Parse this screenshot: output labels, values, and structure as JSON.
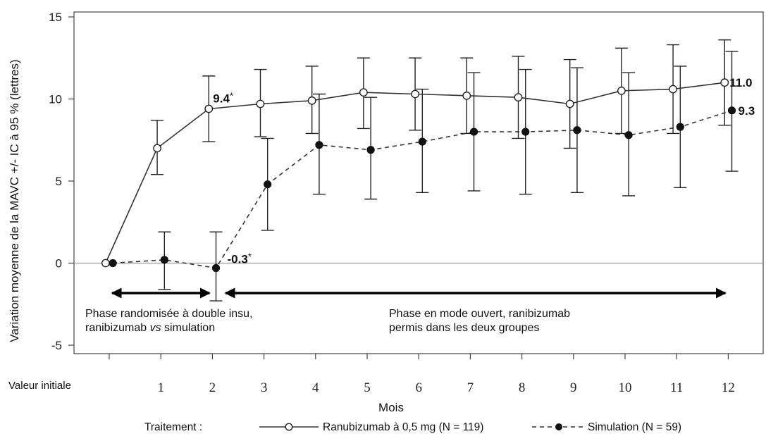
{
  "chart_data": {
    "type": "line",
    "ylabel": "Variation moyenne de la MAVC +/- IC à 95 % (lettres)",
    "xlabel": "Mois",
    "baseline_label": "Valeur initiale",
    "ylim": [
      -6,
      15
    ],
    "yticks": [
      15,
      10,
      5,
      0,
      -5
    ],
    "x": [
      0,
      1,
      2,
      3,
      4,
      5,
      6,
      7,
      8,
      9,
      10,
      11,
      12
    ],
    "x_tick_labels": [
      "1",
      "2",
      "3",
      "4",
      "5",
      "6",
      "7",
      "8",
      "9",
      "10",
      "11",
      "12"
    ],
    "reference_line_y": 0,
    "grid": false,
    "legend": {
      "title": "Traitement :",
      "position": "bottom"
    },
    "series": [
      {
        "name": "Ranubizumab à 0,5 mg (N = 119)",
        "marker": "open-circle",
        "line_style": "solid",
        "x_offset": -0.07,
        "values": [
          0,
          7.0,
          9.4,
          9.7,
          9.9,
          10.4,
          10.3,
          10.2,
          10.1,
          9.7,
          10.5,
          10.6,
          11.0
        ],
        "ci_low": [
          null,
          5.4,
          7.4,
          7.7,
          7.9,
          8.2,
          8.1,
          7.9,
          7.6,
          7.0,
          7.9,
          7.9,
          8.4
        ],
        "ci_high": [
          null,
          8.7,
          11.4,
          11.8,
          12.0,
          12.5,
          12.5,
          12.5,
          12.6,
          12.4,
          13.1,
          13.3,
          13.6
        ]
      },
      {
        "name": "Simulation (N = 59)",
        "marker": "filled-circle",
        "line_style": "dashed",
        "x_offset": 0.07,
        "values": [
          0,
          0.2,
          -0.3,
          4.8,
          7.2,
          6.9,
          7.4,
          8.0,
          8.0,
          8.1,
          7.8,
          8.3,
          9.3
        ],
        "ci_low": [
          null,
          -1.6,
          -2.3,
          2.0,
          4.2,
          3.9,
          4.3,
          4.4,
          4.2,
          4.3,
          4.1,
          4.6,
          5.6
        ],
        "ci_high": [
          null,
          1.9,
          1.9,
          7.6,
          10.3,
          10.1,
          10.6,
          11.6,
          11.8,
          11.9,
          11.6,
          12.0,
          12.9
        ]
      }
    ],
    "data_labels": [
      {
        "series": 0,
        "x": 2,
        "text": "9.4*"
      },
      {
        "series": 1,
        "x": 2,
        "text": "-0.3*"
      },
      {
        "series": 0,
        "x": 12,
        "text": "11.0"
      },
      {
        "series": 1,
        "x": 12,
        "text": "9.3"
      }
    ],
    "annotations": [
      {
        "lines": [
          "Phase randomisée à double insu,",
          "ranibizumab vs simulation"
        ],
        "arrow_from_x": 0,
        "arrow_to_x": 2
      },
      {
        "lines": [
          "Phase en mode ouvert, ranibizumab",
          "permis dans les deux groupes"
        ],
        "arrow_from_x": 2.2,
        "arrow_to_x": 12
      }
    ]
  }
}
